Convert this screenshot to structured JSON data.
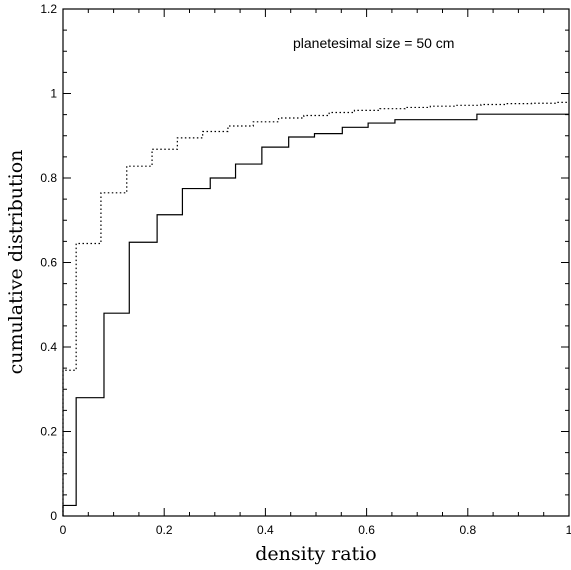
{
  "chart_data": {
    "type": "line",
    "title": "",
    "annotation": "planetesimal size = 50 cm",
    "xlabel": "density ratio",
    "ylabel": "cumulative distribution",
    "xlim": [
      0,
      1
    ],
    "ylim": [
      0,
      1.2
    ],
    "x_ticks": [
      "0",
      "0.2",
      "0.4",
      "0.6",
      "0.8",
      "1"
    ],
    "y_ticks": [
      "0",
      "0.2",
      "0.4",
      "0.6",
      "0.8",
      "1",
      "1.2"
    ],
    "x_tick_values": [
      0,
      0.2,
      0.4,
      0.6,
      0.8,
      1.0
    ],
    "y_tick_values": [
      0,
      0.2,
      0.4,
      0.6,
      0.8,
      1.0,
      1.2
    ],
    "grid": false,
    "series": [
      {
        "style": "solid",
        "step": true,
        "x": [
          0,
          0.026,
          0.081,
          0.131,
          0.186,
          0.236,
          0.291,
          0.341,
          0.393,
          0.446,
          0.497,
          0.552,
          0.603,
          0.656,
          0.818,
          1.0
        ],
        "y": [
          0.025,
          0.28,
          0.48,
          0.648,
          0.713,
          0.775,
          0.8,
          0.833,
          0.873,
          0.897,
          0.905,
          0.92,
          0.93,
          0.938,
          0.951,
          0.951
        ]
      },
      {
        "style": "dotted",
        "step": true,
        "x": [
          0,
          0.026,
          0.075,
          0.126,
          0.176,
          0.226,
          0.276,
          0.326,
          0.376,
          0.426,
          0.476,
          0.526,
          0.576,
          0.626,
          0.676,
          0.726,
          0.776,
          0.826,
          0.876,
          0.926,
          0.976,
          1.0
        ],
        "y": [
          0.345,
          0.645,
          0.765,
          0.828,
          0.868,
          0.895,
          0.91,
          0.923,
          0.933,
          0.942,
          0.948,
          0.955,
          0.96,
          0.964,
          0.967,
          0.97,
          0.972,
          0.974,
          0.976,
          0.977,
          0.979,
          0.979
        ]
      }
    ]
  }
}
